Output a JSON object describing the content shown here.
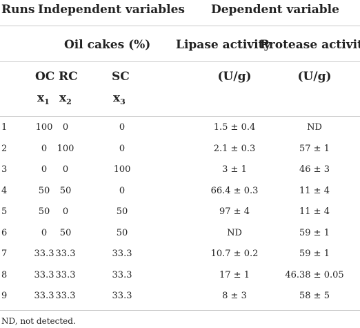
{
  "header": {
    "runs": "Runs",
    "independent": "Independent variables",
    "dependent": "Dependent variable",
    "oil_cakes": "Oil cakes (%)",
    "lipase": "Lipase activity",
    "protease": "Protease activity",
    "oc": "OC",
    "rc": "RC",
    "sc": "SC",
    "x": "x",
    "x1": "1",
    "x2": "2",
    "x3": "3",
    "unit_lipase": "(U/g)",
    "unit_protease": "(U/g)"
  },
  "rows": [
    {
      "run": "1",
      "oc": "100",
      "rc": "0",
      "sc": "0",
      "lipase": "1.5 ± 0.4",
      "protease": "ND"
    },
    {
      "run": "2",
      "oc": "0",
      "rc": "100",
      "sc": "0",
      "lipase": "2.1 ± 0.3",
      "protease": "57 ± 1"
    },
    {
      "run": "3",
      "oc": "0",
      "rc": "0",
      "sc": "100",
      "lipase": "3 ± 1",
      "protease": "46 ± 3"
    },
    {
      "run": "4",
      "oc": "50",
      "rc": "50",
      "sc": "0",
      "lipase": "66.4 ± 0.3",
      "protease": "11 ± 4"
    },
    {
      "run": "5",
      "oc": "50",
      "rc": "0",
      "sc": "50",
      "lipase": "97 ± 4",
      "protease": "11 ± 4"
    },
    {
      "run": "6",
      "oc": "0",
      "rc": "50",
      "sc": "50",
      "lipase": "ND",
      "protease": "59 ± 1"
    },
    {
      "run": "7",
      "oc": "33.3",
      "rc": "33.3",
      "sc": "33.3",
      "lipase": "10.7 ± 0.2",
      "protease": "59 ± 1"
    },
    {
      "run": "8",
      "oc": "33.3",
      "rc": "33.3",
      "sc": "33.3",
      "lipase": "17 ± 1",
      "protease": "46.38 ± 0.05"
    },
    {
      "run": "9",
      "oc": "33.3",
      "rc": "33.3",
      "sc": "33.3",
      "lipase": "8 ± 3",
      "protease": "58 ± 5"
    }
  ],
  "footnote": "ND, not detected."
}
